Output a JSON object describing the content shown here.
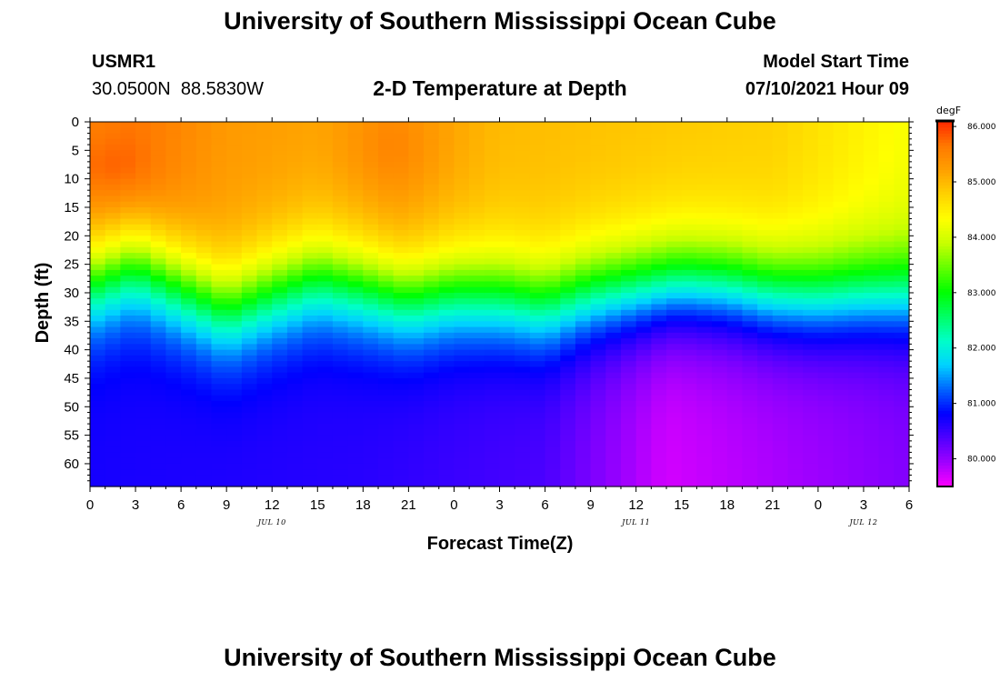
{
  "header": {
    "title_top": "University of Southern Mississippi Ocean Cube",
    "title_bottom": "University of Southern Mississippi Ocean Cube",
    "station_id": "USMR1",
    "station_coords": "30.0500N  88.5830W",
    "plot_title": "2-D Temperature at Depth",
    "model_start_label": "Model Start Time",
    "model_start_value": "07/10/2021 Hour 09"
  },
  "chart_data": {
    "type": "heatmap",
    "title": "2-D Temperature at Depth",
    "xlabel": "Forecast Time(Z)",
    "ylabel": "Depth (ft)",
    "x_tick_labels": [
      "0",
      "3",
      "6",
      "9",
      "12",
      "15",
      "18",
      "21",
      "0",
      "3",
      "6",
      "9",
      "12",
      "15",
      "18",
      "21",
      "0",
      "3",
      "6"
    ],
    "x_hours_from_start": [
      0,
      3,
      6,
      9,
      12,
      15,
      18,
      21,
      24,
      27,
      30,
      33,
      36,
      39,
      42,
      45,
      48,
      51,
      54
    ],
    "date_labels": [
      {
        "label": "JUL 10",
        "hour": 12
      },
      {
        "label": "JUL 11",
        "hour": 36
      },
      {
        "label": "JUL 12",
        "hour": 51
      }
    ],
    "y_ticks": [
      0,
      5,
      10,
      15,
      20,
      25,
      30,
      35,
      40,
      45,
      50,
      55,
      60
    ],
    "ylim": [
      0,
      64
    ],
    "xlim": [
      0,
      54
    ],
    "colorbar": {
      "units": "degF",
      "min": 79.5,
      "max": 86.1,
      "tick_values": [
        80,
        81,
        82,
        83,
        84,
        85,
        86
      ],
      "tick_labels": [
        "80.000",
        "81.000",
        "82.000",
        "83.000",
        "84.000",
        "85.000",
        "86.000"
      ],
      "colors": [
        "#ff00ff",
        "#a000ff",
        "#5000ff",
        "#0000ff",
        "#0064ff",
        "#00d2ff",
        "#00ffc8",
        "#00ff64",
        "#00ff00",
        "#64ff00",
        "#c8ff00",
        "#ffff00",
        "#ffd200",
        "#ffa000",
        "#ff7800",
        "#ff2800"
      ]
    },
    "thermocline_center_depth_ft": [
      {
        "hour": 0,
        "depth": 28
      },
      {
        "hour": 3,
        "depth": 25
      },
      {
        "hour": 6,
        "depth": 29
      },
      {
        "hour": 9,
        "depth": 33
      },
      {
        "hour": 12,
        "depth": 30
      },
      {
        "hour": 15,
        "depth": 27.5
      },
      {
        "hour": 18,
        "depth": 29
      },
      {
        "hour": 21,
        "depth": 31
      },
      {
        "hour": 24,
        "depth": 30
      },
      {
        "hour": 27,
        "depth": 30.5
      },
      {
        "hour": 30,
        "depth": 32
      },
      {
        "hour": 33,
        "depth": 30
      },
      {
        "hour": 36,
        "depth": 29
      },
      {
        "hour": 39,
        "depth": 28
      },
      {
        "hour": 42,
        "depth": 28.5
      },
      {
        "hour": 45,
        "depth": 30
      },
      {
        "hour": 48,
        "depth": 30.5
      },
      {
        "hour": 51,
        "depth": 30
      },
      {
        "hour": 54,
        "depth": 30
      }
    ],
    "surface_temp_degF": [
      {
        "hour": 0,
        "value": 85.6
      },
      {
        "hour": 3,
        "value": 85.7
      },
      {
        "hour": 9,
        "value": 85.3
      },
      {
        "hour": 15,
        "value": 85.2
      },
      {
        "hour": 20,
        "value": 85.4
      },
      {
        "hour": 27,
        "value": 85.0
      },
      {
        "hour": 36,
        "value": 84.9
      },
      {
        "hour": 45,
        "value": 84.8
      },
      {
        "hour": 54,
        "value": 84.3
      }
    ],
    "bottom_temp_degF": [
      {
        "hour": 0,
        "value": 80.7
      },
      {
        "hour": 18,
        "value": 80.6
      },
      {
        "hour": 30,
        "value": 80.4
      },
      {
        "hour": 38,
        "value": 79.7
      },
      {
        "hour": 46,
        "value": 79.9
      },
      {
        "hour": 54,
        "value": 80.1
      }
    ]
  }
}
